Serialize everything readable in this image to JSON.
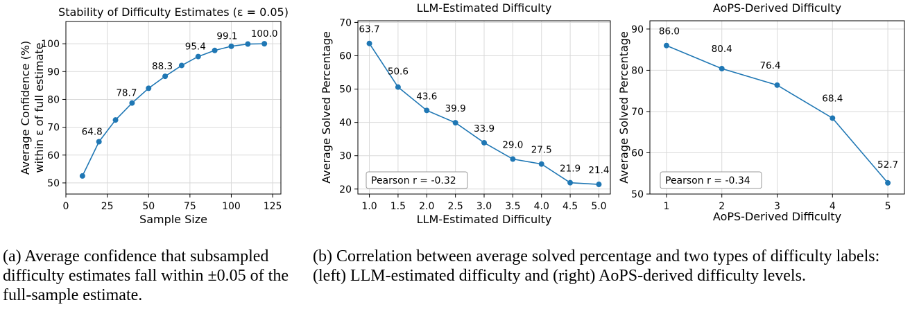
{
  "chart_data": [
    {
      "type": "line",
      "title": "Stability of Difficulty Estimates (ε = 0.05)",
      "xlabel": "Sample Size",
      "ylabel_lines": [
        "Average Confidence (%)",
        "within ε of full estimate"
      ],
      "x": [
        10,
        20,
        30,
        40,
        50,
        60,
        70,
        80,
        90,
        100,
        110,
        120
      ],
      "y": [
        52.5,
        64.8,
        72.6,
        78.7,
        84.0,
        88.3,
        92.2,
        95.4,
        97.6,
        99.1,
        99.9,
        100.0
      ],
      "labels": [
        null,
        "64.8",
        null,
        "78.7",
        null,
        "88.3",
        null,
        "95.4",
        null,
        "99.1",
        null,
        "100.0"
      ],
      "xlim": [
        0,
        130
      ],
      "ylim": [
        46,
        108
      ],
      "xticks": [
        0,
        25,
        50,
        75,
        100,
        125
      ],
      "yticks": [
        50,
        60,
        70,
        80,
        90,
        100
      ],
      "color": "#1f77b4",
      "grid": true
    },
    {
      "type": "line",
      "title": "LLM-Estimated Difficulty",
      "xlabel": "LLM-Estimated Difficulty",
      "ylabel": "Average Solved Percentage",
      "x": [
        1.0,
        1.5,
        2.0,
        2.5,
        3.0,
        3.5,
        4.0,
        4.5,
        5.0
      ],
      "y": [
        63.7,
        50.6,
        43.6,
        39.9,
        33.9,
        29.0,
        27.5,
        21.9,
        21.4
      ],
      "labels": [
        "63.7",
        "50.6",
        "43.6",
        "39.9",
        "33.9",
        "29.0",
        "27.5",
        "21.9",
        "21.4"
      ],
      "xlim": [
        0.8,
        5.2
      ],
      "ylim": [
        18.5,
        70.5
      ],
      "xticks": [
        "1.0",
        "1.5",
        "2.0",
        "2.5",
        "3.0",
        "3.5",
        "4.0",
        "4.5",
        "5.0"
      ],
      "yticks": [
        20,
        30,
        40,
        50,
        60,
        70
      ],
      "annotation": "Pearson r = -0.32",
      "color": "#1f77b4",
      "grid": true
    },
    {
      "type": "line",
      "title": "AoPS-Derived Difficulty",
      "xlabel": "AoPS-Derived Difficulty",
      "ylabel": "Average Solved Percentage",
      "x": [
        1,
        2,
        3,
        4,
        5
      ],
      "y": [
        86.0,
        80.4,
        76.4,
        68.4,
        52.7
      ],
      "labels": [
        "86.0",
        "80.4",
        "76.4",
        "68.4",
        "52.7"
      ],
      "xlim": [
        0.7,
        5.3
      ],
      "ylim": [
        50,
        92
      ],
      "xticks": [
        "1",
        "2",
        "3",
        "4",
        "5"
      ],
      "yticks": [
        50,
        60,
        70,
        80,
        90
      ],
      "annotation": "Pearson r = -0.34",
      "color": "#1f77b4",
      "grid": true
    }
  ],
  "captions": {
    "a": "(a) Average confidence that subsampled difficulty estimates fall within ±0.05 of the full-sample estimate.",
    "b": "(b) Correlation between average solved percentage and two types of difficulty labels: (left) LLM-estimated difficulty and (right) AoPS-derived difficulty levels."
  }
}
